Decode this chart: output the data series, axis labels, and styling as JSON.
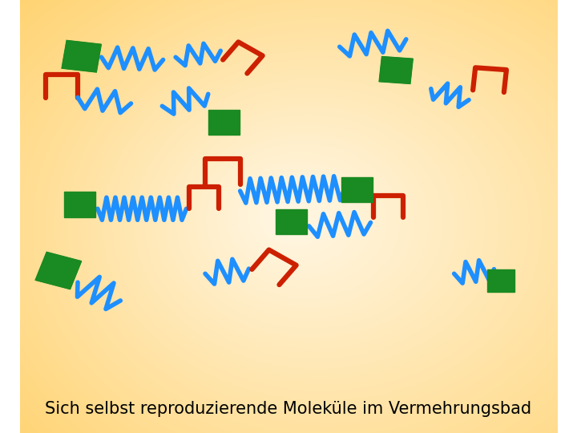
{
  "title": "Sich selbst reproduzierende Moleküle im Vermehrungsbad",
  "title_fontsize": 15,
  "blue": "#1E8FFF",
  "red": "#CC2000",
  "green": "#1A8A22",
  "lw_zigzag": 4.0,
  "lw_bracket": 4.5
}
